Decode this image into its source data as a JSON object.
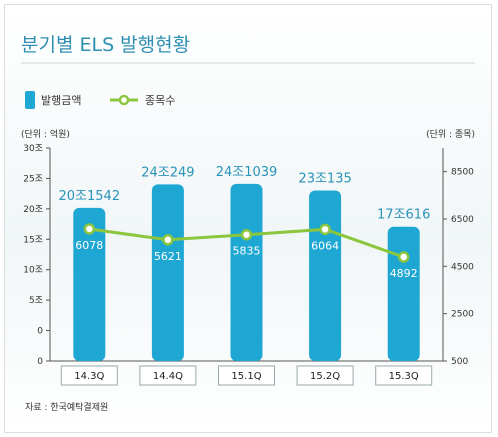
{
  "title": "분기별 ELS 발행현황",
  "source": "자료 : 한국예탁결제원",
  "colors": {
    "bar": "#1ea7d2",
    "line": "#8cc63f",
    "title": "#2f8fb3",
    "barLabel": "#2a93b8"
  },
  "chart_data": {
    "type": "bar",
    "categories": [
      "14.3Q",
      "14.4Q",
      "15.1Q",
      "15.2Q",
      "15.3Q"
    ],
    "series": [
      {
        "name": "발행금액",
        "type": "bar",
        "axis": "left",
        "values": [
          20.1542,
          24.0249,
          24.1039,
          23.0135,
          17.0616
        ],
        "labels": [
          "20조1542",
          "24조249",
          "24조1039",
          "23조135",
          "17조616"
        ]
      },
      {
        "name": "종목수",
        "type": "line",
        "axis": "right",
        "values": [
          6078,
          5621,
          5835,
          6064,
          4892
        ],
        "labels": [
          "6078",
          "5621",
          "5835",
          "6064",
          "4892"
        ]
      }
    ],
    "left_axis": {
      "unit_label": "(단위 : 억원)",
      "ticks": [
        "30조",
        "25조",
        "20조",
        "15조",
        "10조",
        "5조",
        "0",
        "0"
      ],
      "range": [
        -5,
        30
      ]
    },
    "right_axis": {
      "unit_label": "(단위 : 종목)",
      "ticks": [
        "8500",
        "6500",
        "4500",
        "2500",
        "500"
      ],
      "range": [
        500,
        9500
      ]
    },
    "legend": "top-left",
    "grid": false
  }
}
